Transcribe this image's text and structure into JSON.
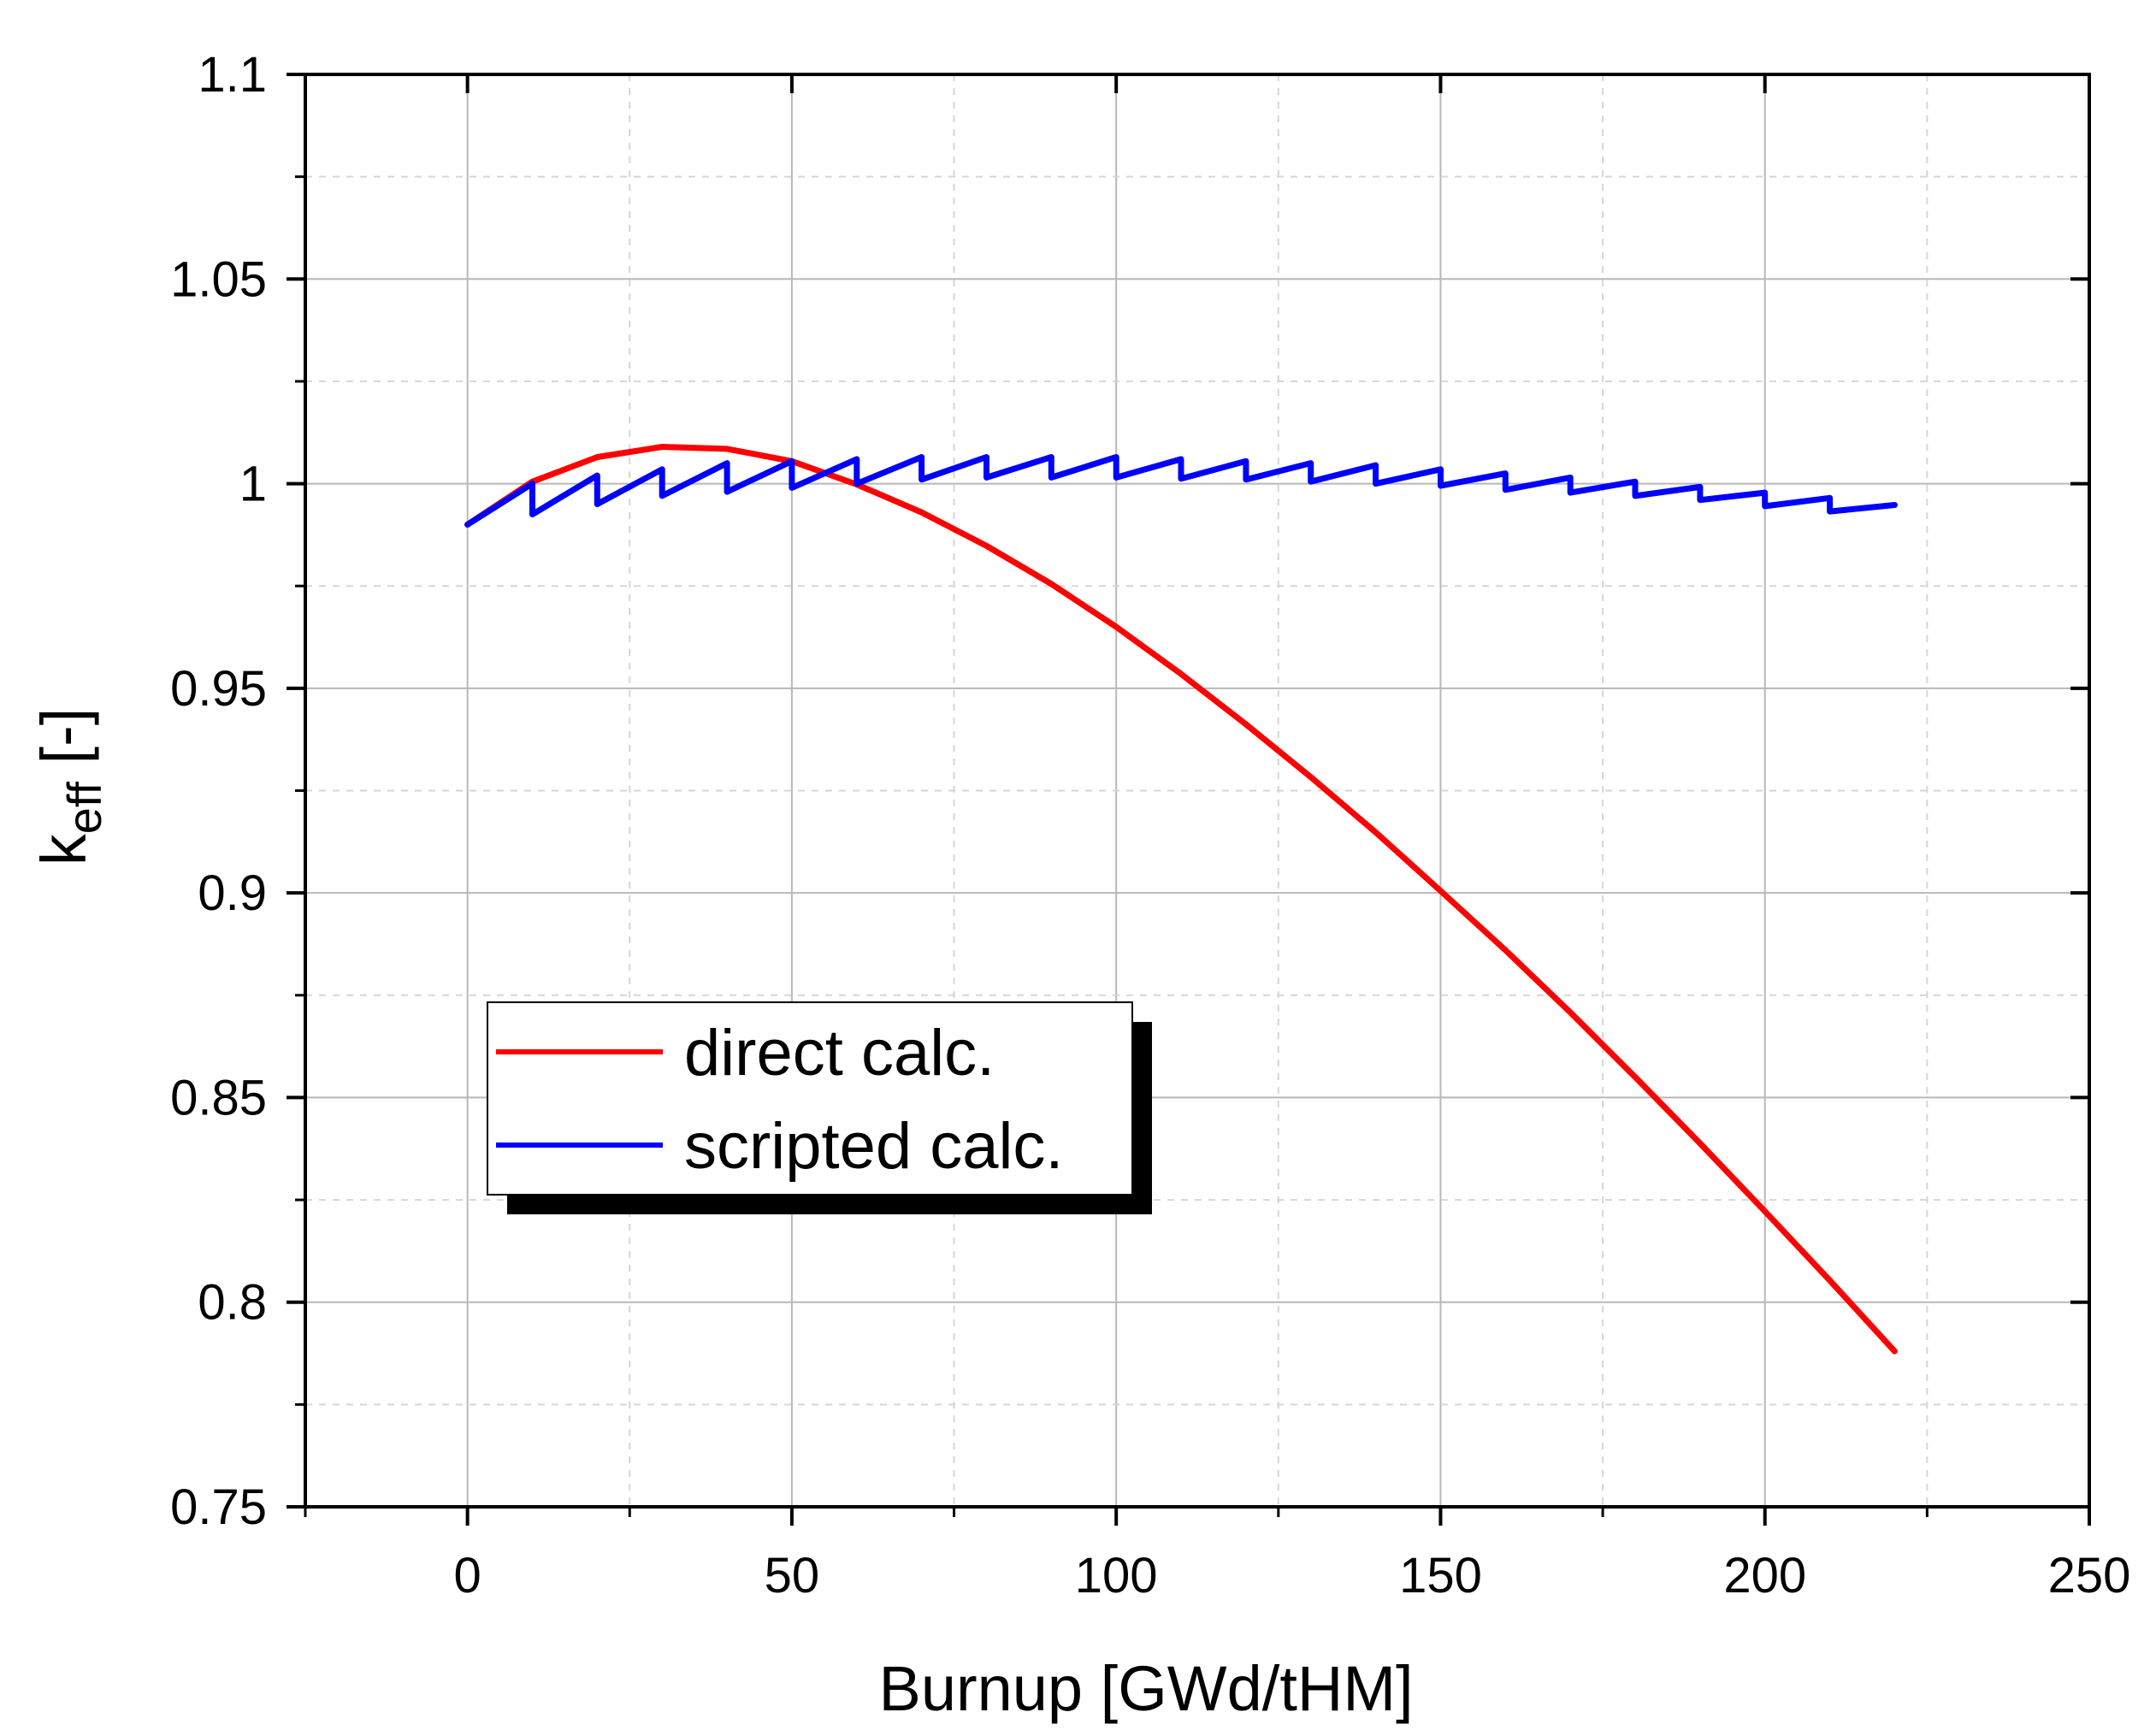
{
  "chart_data": {
    "type": "line",
    "xlabel": "Burnup [GWd/tHM]",
    "ylabel": {
      "base": "k",
      "subscript": "eff",
      "suffix": " [-]"
    },
    "xlim": [
      -25,
      250
    ],
    "ylim": [
      0.75,
      1.1
    ],
    "x_ticks": [
      0,
      50,
      100,
      150,
      200,
      250
    ],
    "x_tick_labels": [
      "0",
      "50",
      "100",
      "150",
      "200",
      "250"
    ],
    "x_minor_ticks": [
      -25,
      25,
      75,
      125,
      175,
      225
    ],
    "y_ticks": [
      0.75,
      0.8,
      0.85,
      0.9,
      0.95,
      1.0,
      1.05,
      1.1
    ],
    "y_tick_labels": [
      "0.75",
      "0.8",
      "0.85",
      "0.9",
      "0.95",
      "1",
      "1.05",
      "1.1"
    ],
    "y_minor_ticks": [
      0.775,
      0.825,
      0.875,
      0.925,
      0.975,
      1.025,
      1.075
    ],
    "grid": true,
    "legend_position": "lower-left",
    "series": [
      {
        "name": "direct calc.",
        "color": "#ff0000",
        "x": [
          0,
          10,
          20,
          30,
          40,
          50,
          60,
          70,
          80,
          90,
          100,
          110,
          120,
          130,
          140,
          150,
          160,
          170,
          180,
          190,
          200,
          210,
          220
        ],
        "y": [
          0.99,
          1.0005,
          1.0065,
          1.009,
          1.0085,
          1.0055,
          0.9998,
          0.993,
          0.9848,
          0.9755,
          0.965,
          0.9535,
          0.9412,
          0.9283,
          0.9148,
          0.9005,
          0.886,
          0.8708,
          0.855,
          0.8388,
          0.8222,
          0.8053,
          0.788
        ]
      },
      {
        "name": "scripted calc.",
        "color": "#0000ff",
        "x": [
          0,
          10,
          10,
          20,
          20,
          30,
          30,
          40,
          40,
          50,
          50,
          60,
          60,
          70,
          70,
          80,
          80,
          90,
          90,
          100,
          100,
          110,
          110,
          120,
          120,
          130,
          130,
          140,
          140,
          150,
          150,
          160,
          160,
          170,
          170,
          180,
          180,
          190,
          190,
          200,
          200,
          210,
          210,
          220
        ],
        "y": [
          0.99,
          1.0,
          0.9925,
          1.002,
          0.995,
          1.0035,
          0.997,
          1.005,
          0.998,
          1.0055,
          0.999,
          1.006,
          1.0,
          1.0065,
          1.001,
          1.0065,
          1.0015,
          1.0065,
          1.0015,
          1.0065,
          1.0015,
          1.006,
          1.0012,
          1.0055,
          1.001,
          1.005,
          1.0005,
          1.0045,
          1.0,
          1.0035,
          0.9995,
          1.0025,
          0.9985,
          1.0015,
          0.9978,
          1.0005,
          0.997,
          0.9992,
          0.996,
          0.9978,
          0.9945,
          0.9965,
          0.9932,
          0.9948
        ]
      }
    ]
  }
}
